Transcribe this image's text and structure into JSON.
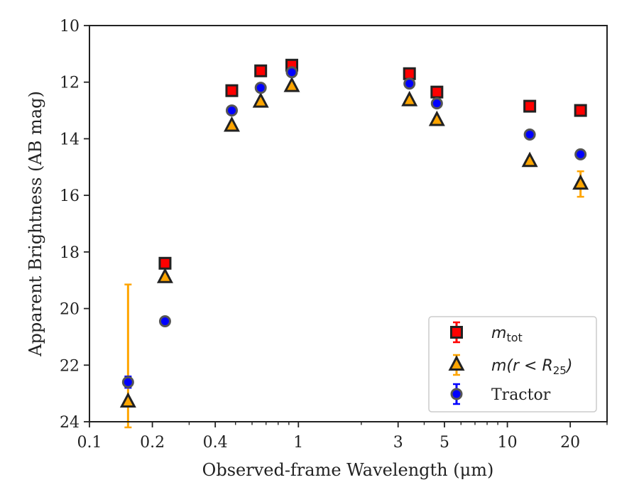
{
  "chart_data": {
    "type": "scatter",
    "xscale": "log",
    "xlim": [
      0.1,
      30
    ],
    "ylim": [
      24,
      10
    ],
    "y_inverted": true,
    "grid": false,
    "legend_position": "lower-right",
    "xlabel": "Observed-frame Wavelength (μm)",
    "ylabel": "Apparent Brightness (AB mag)",
    "x_ticks": [
      {
        "value": 0.1,
        "label": "0.1"
      },
      {
        "value": 0.2,
        "label": "0.2"
      },
      {
        "value": 0.4,
        "label": "0.4"
      },
      {
        "value": 1,
        "label": "1"
      },
      {
        "value": 3,
        "label": "3"
      },
      {
        "value": 5,
        "label": "5"
      },
      {
        "value": 10,
        "label": "10"
      },
      {
        "value": 20,
        "label": "20"
      }
    ],
    "x_minor_ticks": [
      0.3,
      0.5,
      0.6,
      0.7,
      0.8,
      0.9,
      2,
      4,
      6,
      7,
      8,
      9,
      30
    ],
    "y_ticks": [
      {
        "value": 10,
        "label": "10"
      },
      {
        "value": 12,
        "label": "12"
      },
      {
        "value": 14,
        "label": "14"
      },
      {
        "value": 16,
        "label": "16"
      },
      {
        "value": 18,
        "label": "18"
      },
      {
        "value": 20,
        "label": "20"
      },
      {
        "value": 22,
        "label": "22"
      },
      {
        "value": 24,
        "label": "24"
      }
    ],
    "series": [
      {
        "id": "mtot",
        "legend_main": "m",
        "legend_sub": "tot",
        "marker": "square",
        "face_color": "#ff0000",
        "edge_color": "#222222",
        "error_color": "#ff0000",
        "points": [
          {
            "x": 0.23,
            "y": 18.4,
            "err": 0
          },
          {
            "x": 0.48,
            "y": 12.3,
            "err": 0
          },
          {
            "x": 0.66,
            "y": 11.6,
            "err": 0
          },
          {
            "x": 0.93,
            "y": 11.4,
            "err": 0
          },
          {
            "x": 3.4,
            "y": 11.7,
            "err": 0
          },
          {
            "x": 4.6,
            "y": 12.35,
            "err": 0
          },
          {
            "x": 12.8,
            "y": 12.85,
            "err": 0
          },
          {
            "x": 22.4,
            "y": 13.0,
            "err": 0
          }
        ]
      },
      {
        "id": "mr25",
        "legend_parts": [
          "m(r < R",
          "25",
          ")"
        ],
        "marker": "triangle",
        "face_color": "#ffa500",
        "edge_color": "#222222",
        "error_color": "#ffa500",
        "points": [
          {
            "x": 0.153,
            "y": 23.3,
            "err_low": 4.15,
            "err_high": 0.9
          },
          {
            "x": 0.23,
            "y": 18.9,
            "err": 0
          },
          {
            "x": 0.48,
            "y": 13.55,
            "err": 0
          },
          {
            "x": 0.66,
            "y": 12.7,
            "err": 0
          },
          {
            "x": 0.93,
            "y": 12.15,
            "err": 0
          },
          {
            "x": 3.4,
            "y": 12.65,
            "err": 0
          },
          {
            "x": 4.6,
            "y": 13.35,
            "err": 0
          },
          {
            "x": 12.8,
            "y": 14.8,
            "err": 0
          },
          {
            "x": 22.4,
            "y": 15.6,
            "err": 0.45
          }
        ]
      },
      {
        "id": "tractor",
        "name": "Tractor",
        "marker": "circle",
        "face_color": "#0000ff",
        "edge_color": "#555555",
        "error_color": "#0000ff",
        "points": [
          {
            "x": 0.153,
            "y": 22.6,
            "err": 0.2
          },
          {
            "x": 0.23,
            "y": 20.45,
            "err": 0
          },
          {
            "x": 0.48,
            "y": 13.0,
            "err": 0
          },
          {
            "x": 0.66,
            "y": 12.2,
            "err": 0
          },
          {
            "x": 0.93,
            "y": 11.65,
            "err": 0
          },
          {
            "x": 3.4,
            "y": 12.05,
            "err": 0
          },
          {
            "x": 4.6,
            "y": 12.75,
            "err": 0
          },
          {
            "x": 12.8,
            "y": 13.85,
            "err": 0
          },
          {
            "x": 22.4,
            "y": 14.55,
            "err": 0
          }
        ]
      }
    ]
  }
}
